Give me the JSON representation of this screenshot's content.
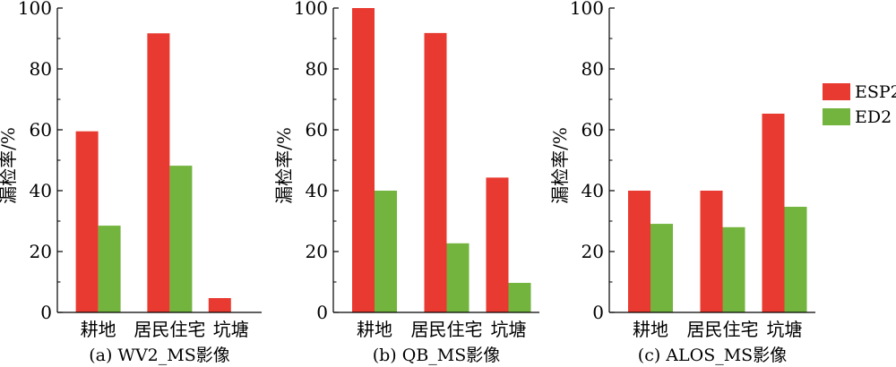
{
  "chart_data": [
    {
      "type": "bar",
      "caption": "(a) WV2_MS影像",
      "ylabel": "漏检率/%",
      "ylim": [
        0,
        100
      ],
      "yticks": [
        0,
        20,
        40,
        60,
        80,
        100
      ],
      "categories": [
        "耕地",
        "居民住宅",
        "坑塘"
      ],
      "series": [
        {
          "name": "ESP2",
          "values": [
            59.5,
            91.7,
            4.7
          ]
        },
        {
          "name": "ED2",
          "values": [
            28.5,
            48.2,
            0
          ]
        }
      ]
    },
    {
      "type": "bar",
      "caption": "(b) QB_MS影像",
      "ylabel": "漏检率/%",
      "ylim": [
        0,
        100
      ],
      "yticks": [
        0,
        20,
        40,
        60,
        80,
        100
      ],
      "categories": [
        "耕地",
        "居民住宅",
        "坑塘"
      ],
      "series": [
        {
          "name": "ESP2",
          "values": [
            100,
            91.8,
            44.3
          ]
        },
        {
          "name": "ED2",
          "values": [
            40,
            22.7,
            9.7
          ]
        }
      ]
    },
    {
      "type": "bar",
      "caption": "(c) ALOS_MS影像",
      "ylabel": "漏检率/%",
      "ylim": [
        0,
        100
      ],
      "yticks": [
        0,
        20,
        40,
        60,
        80,
        100
      ],
      "categories": [
        "耕地",
        "居民住宅",
        "坑塘"
      ],
      "series": [
        {
          "name": "ESP2",
          "values": [
            40,
            40,
            65.3
          ]
        },
        {
          "name": "ED2",
          "values": [
            29.1,
            28,
            34.7
          ]
        }
      ]
    }
  ],
  "legend": [
    {
      "name": "ESP2",
      "color": "#e83a30"
    },
    {
      "name": "ED2",
      "color": "#72b43e"
    }
  ],
  "colors": {
    "ESP2": "#e83a30",
    "ED2": "#72b43e"
  }
}
